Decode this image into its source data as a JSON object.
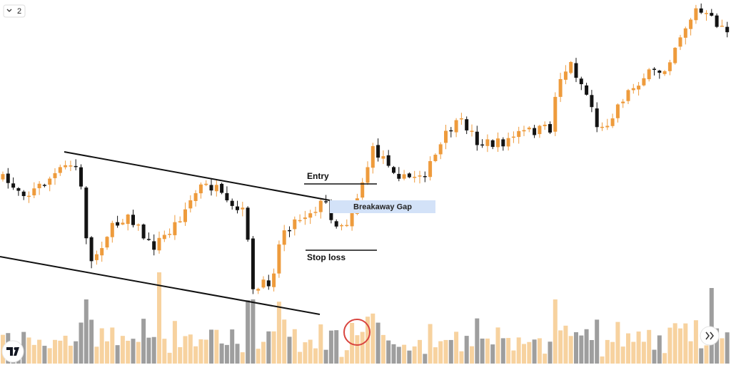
{
  "toolbar": {
    "interval_badge": "2"
  },
  "annotations": {
    "entry": "Entry",
    "breakaway_gap": "Breakaway Gap",
    "stop_loss": "Stop loss"
  }
}
